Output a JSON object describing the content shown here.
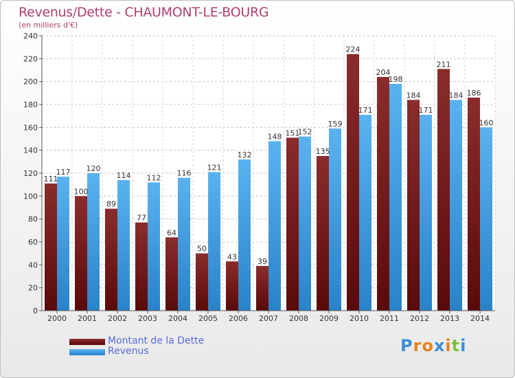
{
  "chart_data": {
    "type": "bar",
    "title": "Revenus/Dette - CHAUMONT-LE-BOURG",
    "subtitle": "(en milliers d'€)",
    "xlabel": "",
    "ylabel": "",
    "ylim": [
      0,
      240
    ],
    "yticks": [
      "0",
      "20",
      "40",
      "60",
      "80",
      "100",
      "120",
      "140",
      "160",
      "180",
      "200",
      "220",
      "240"
    ],
    "grid": true,
    "categories": [
      "2000",
      "2001",
      "2002",
      "2003",
      "2004",
      "2005",
      "2006",
      "2007",
      "2008",
      "2009",
      "2010",
      "2011",
      "2012",
      "2013",
      "2014"
    ],
    "series": [
      {
        "name": "Montant de la Dette",
        "color": "#7a1e1e",
        "values": [
          111,
          100,
          89,
          77,
          64,
          50,
          43,
          39,
          151,
          135,
          224,
          204,
          184,
          211,
          186
        ]
      },
      {
        "name": "Revenus",
        "color": "#3d9be0",
        "values": [
          117,
          120,
          114,
          112,
          116,
          121,
          132,
          148,
          152,
          159,
          171,
          198,
          171,
          184,
          160
        ]
      }
    ],
    "data_labels": [
      [
        "111",
        "100",
        "89",
        "77",
        "64",
        "50",
        "43",
        "39",
        "151",
        "135",
        "224",
        "204",
        "184",
        "211",
        "186"
      ],
      [
        "117",
        "120",
        "114",
        "112",
        "116",
        "121",
        "132",
        "148",
        "152",
        "159",
        "171",
        "198",
        "171",
        "184",
        "160"
      ]
    ],
    "legend_position": "bottom-left"
  },
  "legend": {
    "dette_label": "Montant de la Dette",
    "revenus_label": "Revenus"
  },
  "logo": {
    "letters": [
      "P",
      "r",
      "o",
      "x",
      "i",
      "t",
      "i"
    ],
    "colors": [
      "#3a8fd8",
      "#e8821e",
      "#e8821e",
      "#3a8fd8",
      "#e8821e",
      "#7cc243",
      "#3a8fd8"
    ]
  }
}
